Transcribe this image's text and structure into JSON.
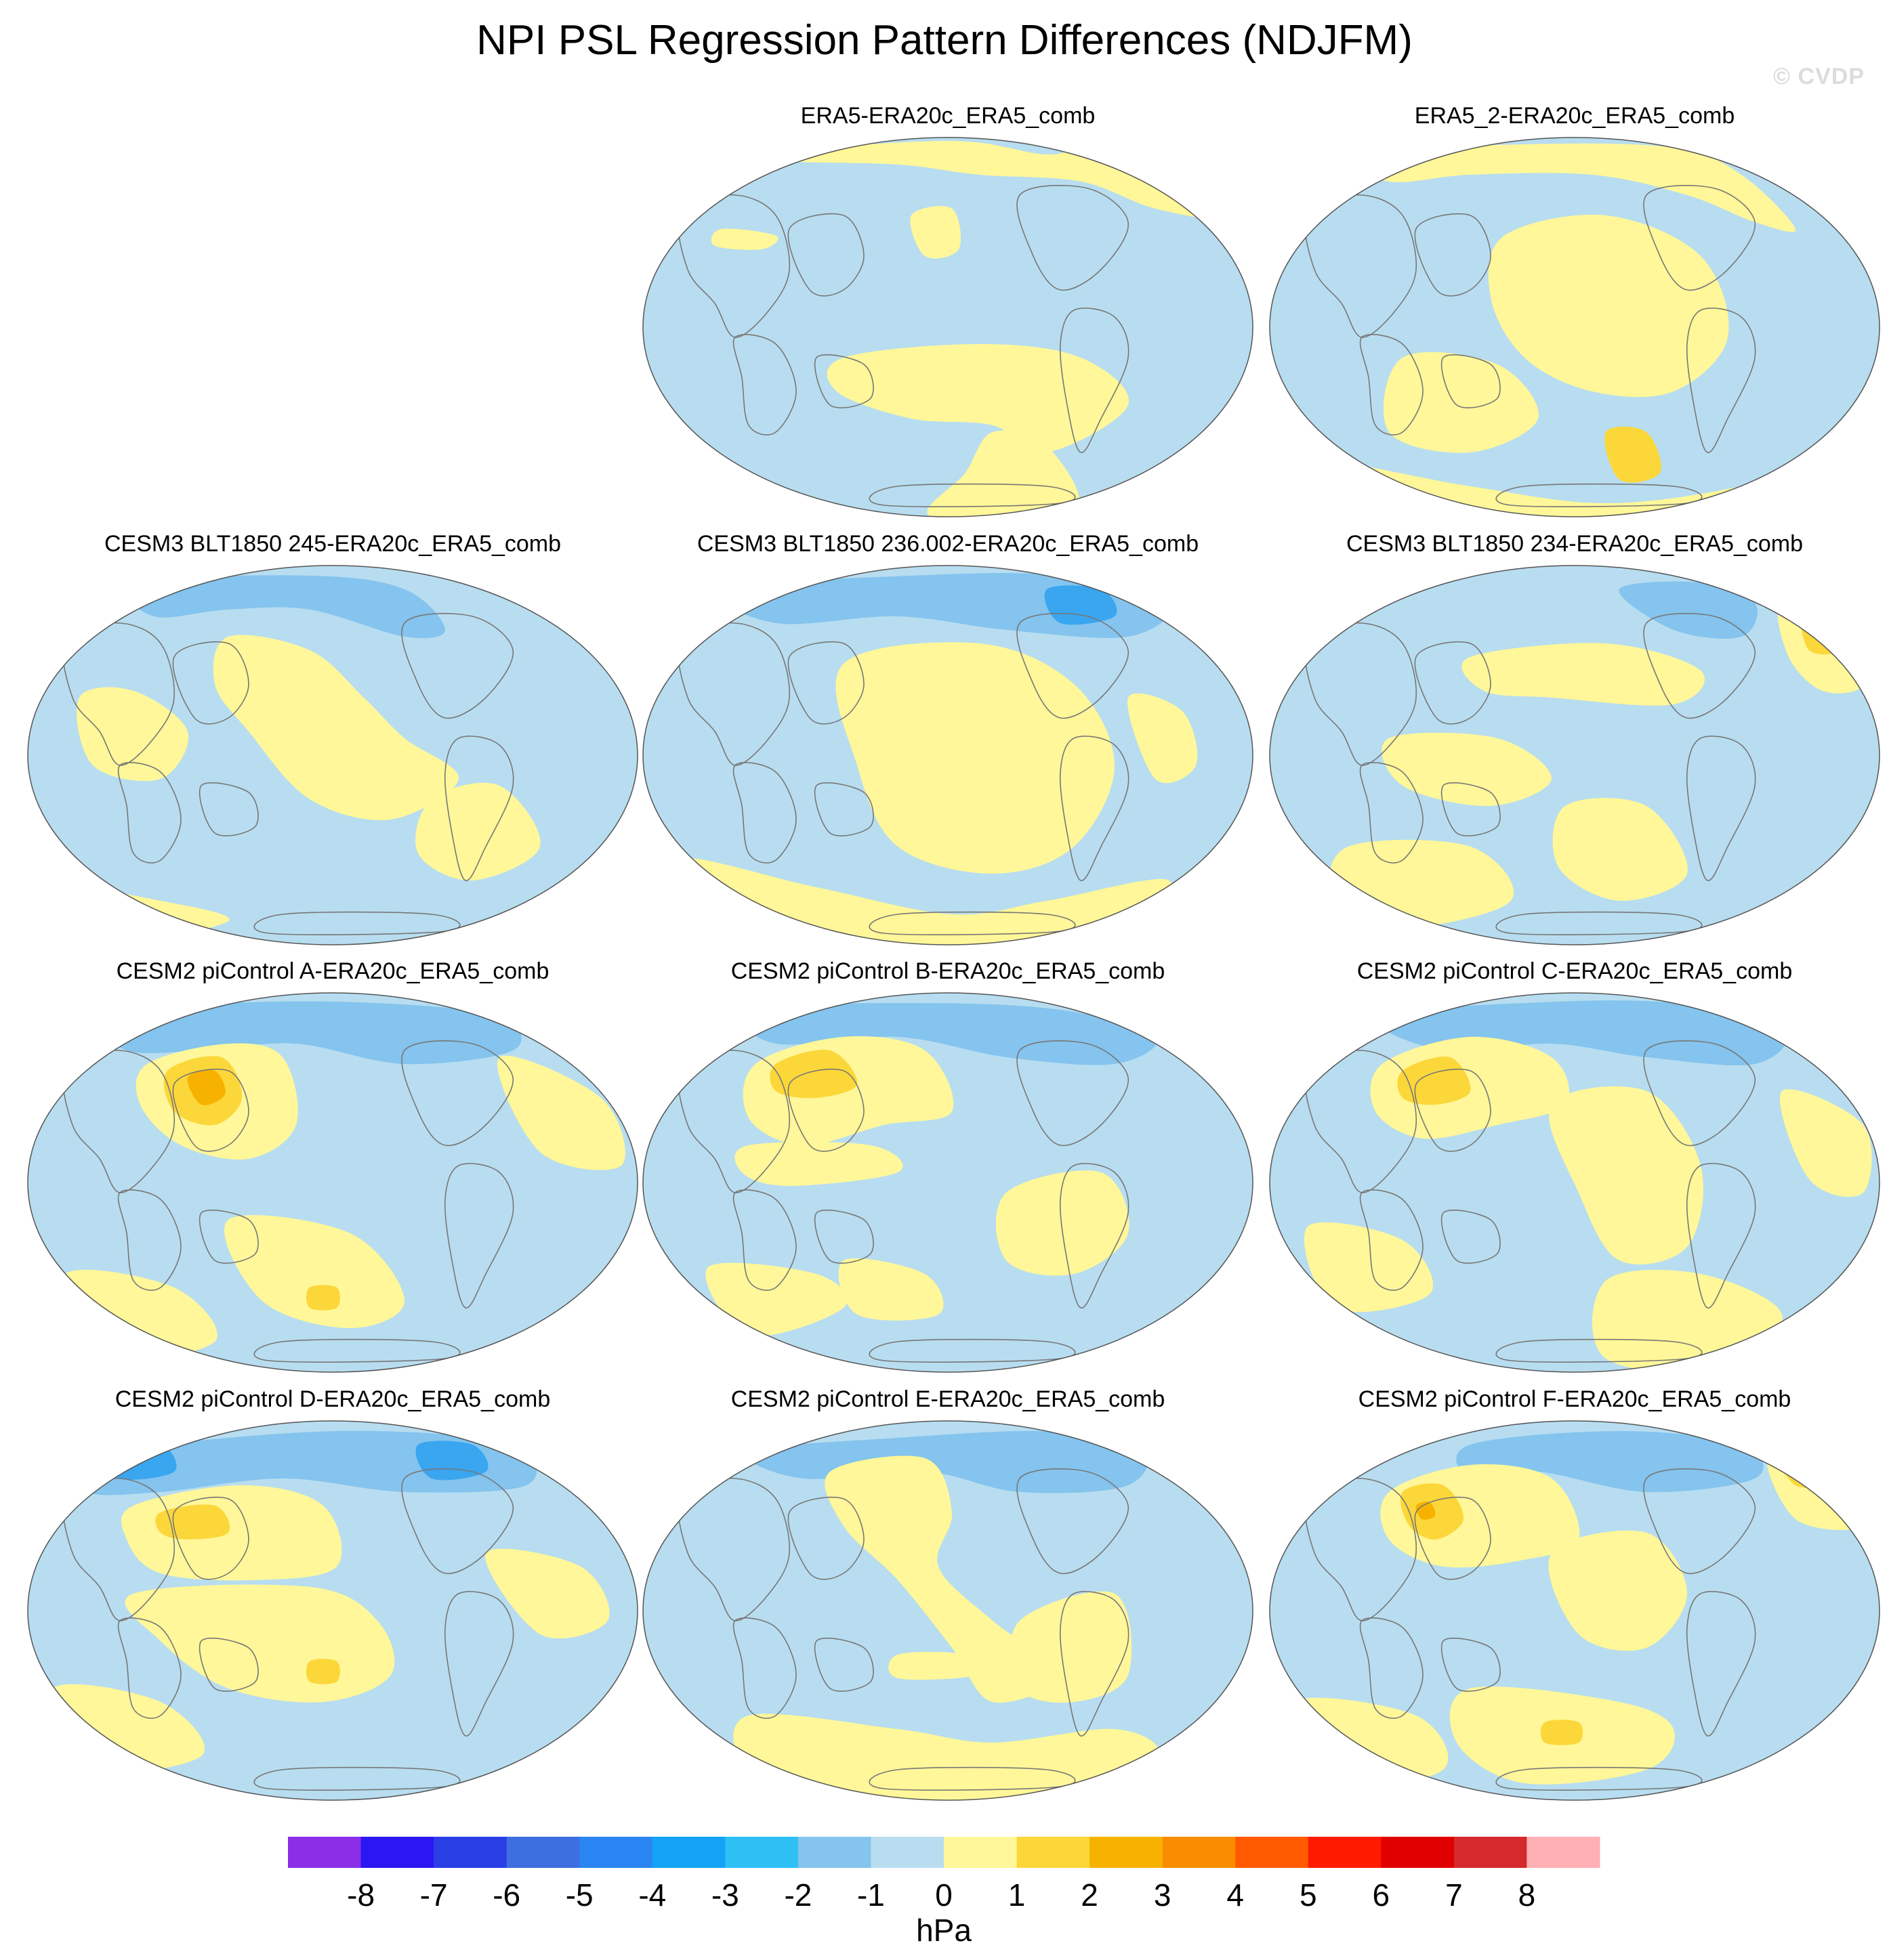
{
  "figure": {
    "title": "NPI PSL Regression Pattern Differences (NDJFM)",
    "watermark": "© CVDP"
  },
  "colors": {
    "ocean_negative": "#b8ddf0",
    "positive_weak": "#fff799",
    "positive_mid": "#fcd73a",
    "positive_strong": "#f7b200",
    "negative_mid": "#84c4ee",
    "negative_strong": "#3aa6f0",
    "coastline": "#777777"
  },
  "panels": [
    {
      "title": "ERA5-ERA20c_ERA5_comb"
    },
    {
      "title": "ERA5_2-ERA20c_ERA5_comb"
    },
    {
      "title": "CESM3 BLT1850 245-ERA20c_ERA5_comb"
    },
    {
      "title": "CESM3 BLT1850 236.002-ERA20c_ERA5_comb"
    },
    {
      "title": "CESM3 BLT1850 234-ERA20c_ERA5_comb"
    },
    {
      "title": "CESM2 piControl A-ERA20c_ERA5_comb"
    },
    {
      "title": "CESM2 piControl B-ERA20c_ERA5_comb"
    },
    {
      "title": "CESM2 piControl C-ERA20c_ERA5_comb"
    },
    {
      "title": "CESM2 piControl D-ERA20c_ERA5_comb"
    },
    {
      "title": "CESM2 piControl E-ERA20c_ERA5_comb"
    },
    {
      "title": "CESM2 piControl F-ERA20c_ERA5_comb"
    }
  ],
  "colorbar": {
    "unit": "hPa",
    "tick_labels": [
      "-8",
      "-7",
      "-6",
      "-5",
      "-4",
      "-3",
      "-2",
      "-1",
      "0",
      "1",
      "2",
      "3",
      "4",
      "5",
      "6",
      "7",
      "8"
    ],
    "colors": [
      "#8b2ee8",
      "#2a17f2",
      "#2a3ee6",
      "#3d6fe0",
      "#2b85f2",
      "#14a3f7",
      "#2ebff5",
      "#84c4ee",
      "#b8ddf0",
      "#fff799",
      "#fcd73a",
      "#f7b200",
      "#fa8c00",
      "#ff5a00",
      "#ff1a00",
      "#e00000",
      "#d42a2e",
      "#ffb0b5"
    ]
  }
}
